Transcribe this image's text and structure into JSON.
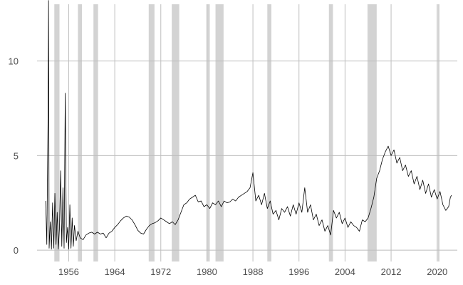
{
  "chart_data": {
    "type": "line",
    "title": "",
    "xlabel": "",
    "ylabel": "",
    "xlim": [
      1950.5,
      2023.5
    ],
    "ylim": [
      -0.6,
      13.0
    ],
    "x_ticks": [
      1956,
      1964,
      1972,
      1980,
      1988,
      1996,
      2004,
      2012,
      2020
    ],
    "x_tick_labels": [
      "1956",
      "1964",
      "1972",
      "1980",
      "1988",
      "1996",
      "2004",
      "2012",
      "2020"
    ],
    "y_ticks": [
      0,
      5,
      10
    ],
    "y_tick_labels": [
      "0",
      "5",
      "10"
    ],
    "grid": true,
    "legend": "none",
    "colors": {
      "line": "#000000",
      "shade": "#d3d3d3",
      "grid": "#bebebe",
      "background": "#ffffff"
    },
    "recession_periods": [
      [
        1953.5,
        1954.4
      ],
      [
        1957.6,
        1958.3
      ],
      [
        1960.3,
        1961.1
      ],
      [
        1969.9,
        1970.9
      ],
      [
        1973.9,
        1975.2
      ],
      [
        1980.0,
        1980.5
      ],
      [
        1981.5,
        1982.9
      ],
      [
        1990.5,
        1991.2
      ],
      [
        2001.2,
        2001.9
      ],
      [
        2007.9,
        2009.5
      ],
      [
        2020.1,
        2020.4
      ]
    ],
    "series": [
      {
        "values": [
          [
            1952.0,
            2.6
          ],
          [
            1952.2,
            0.3
          ],
          [
            1952.4,
            6.7
          ],
          [
            1952.5,
            13.2
          ],
          [
            1952.6,
            0.1
          ],
          [
            1952.8,
            1.5
          ],
          [
            1953.0,
            0.05
          ],
          [
            1953.2,
            2.5
          ],
          [
            1953.4,
            0.1
          ],
          [
            1953.6,
            3.0
          ],
          [
            1953.8,
            0.3
          ],
          [
            1954.0,
            2.0
          ],
          [
            1954.2,
            0.05
          ],
          [
            1954.4,
            1.2
          ],
          [
            1954.6,
            4.2
          ],
          [
            1954.8,
            0.2
          ],
          [
            1955.0,
            3.3
          ],
          [
            1955.2,
            0.1
          ],
          [
            1955.4,
            8.3
          ],
          [
            1955.6,
            0.4
          ],
          [
            1955.8,
            1.2
          ],
          [
            1956.0,
            0.05
          ],
          [
            1956.2,
            2.4
          ],
          [
            1956.4,
            0.1
          ],
          [
            1956.6,
            1.7
          ],
          [
            1956.8,
            0.2
          ],
          [
            1957.0,
            1.3
          ],
          [
            1957.3,
            0.5
          ],
          [
            1957.6,
            1.0
          ],
          [
            1958.0,
            0.65
          ],
          [
            1958.5,
            0.55
          ],
          [
            1959.0,
            0.8
          ],
          [
            1959.5,
            0.9
          ],
          [
            1960.0,
            0.95
          ],
          [
            1960.5,
            0.85
          ],
          [
            1961.0,
            0.95
          ],
          [
            1961.5,
            0.85
          ],
          [
            1962.0,
            0.9
          ],
          [
            1962.5,
            0.65
          ],
          [
            1963.0,
            0.9
          ],
          [
            1963.5,
            1.0
          ],
          [
            1964.0,
            1.2
          ],
          [
            1964.5,
            1.35
          ],
          [
            1965.0,
            1.55
          ],
          [
            1965.5,
            1.7
          ],
          [
            1966.0,
            1.8
          ],
          [
            1966.5,
            1.75
          ],
          [
            1967.0,
            1.6
          ],
          [
            1967.5,
            1.35
          ],
          [
            1968.0,
            1.05
          ],
          [
            1968.5,
            0.9
          ],
          [
            1969.0,
            0.85
          ],
          [
            1969.5,
            1.1
          ],
          [
            1970.0,
            1.3
          ],
          [
            1970.5,
            1.4
          ],
          [
            1971.0,
            1.45
          ],
          [
            1971.5,
            1.55
          ],
          [
            1972.0,
            1.7
          ],
          [
            1972.5,
            1.6
          ],
          [
            1973.0,
            1.5
          ],
          [
            1973.5,
            1.4
          ],
          [
            1974.0,
            1.5
          ],
          [
            1974.5,
            1.35
          ],
          [
            1975.0,
            1.6
          ],
          [
            1975.5,
            2.0
          ],
          [
            1976.0,
            2.4
          ],
          [
            1976.5,
            2.5
          ],
          [
            1977.0,
            2.7
          ],
          [
            1977.5,
            2.8
          ],
          [
            1978.0,
            2.9
          ],
          [
            1978.5,
            2.55
          ],
          [
            1979.0,
            2.6
          ],
          [
            1979.5,
            2.3
          ],
          [
            1980.0,
            2.4
          ],
          [
            1980.5,
            2.2
          ],
          [
            1981.0,
            2.5
          ],
          [
            1981.5,
            2.4
          ],
          [
            1982.0,
            2.6
          ],
          [
            1982.5,
            2.3
          ],
          [
            1983.0,
            2.6
          ],
          [
            1983.5,
            2.5
          ],
          [
            1984.0,
            2.55
          ],
          [
            1984.5,
            2.7
          ],
          [
            1985.0,
            2.6
          ],
          [
            1985.5,
            2.8
          ],
          [
            1986.0,
            2.9
          ],
          [
            1986.5,
            3.0
          ],
          [
            1987.0,
            3.1
          ],
          [
            1987.5,
            3.3
          ],
          [
            1988.0,
            4.1
          ],
          [
            1988.5,
            2.6
          ],
          [
            1989.0,
            2.9
          ],
          [
            1989.5,
            2.4
          ],
          [
            1990.0,
            3.0
          ],
          [
            1990.5,
            2.2
          ],
          [
            1991.0,
            2.6
          ],
          [
            1991.5,
            1.9
          ],
          [
            1992.0,
            2.1
          ],
          [
            1992.5,
            1.6
          ],
          [
            1993.0,
            2.2
          ],
          [
            1993.5,
            2.0
          ],
          [
            1994.0,
            2.3
          ],
          [
            1994.5,
            1.8
          ],
          [
            1995.0,
            2.4
          ],
          [
            1995.5,
            1.9
          ],
          [
            1996.0,
            2.5
          ],
          [
            1996.5,
            2.0
          ],
          [
            1997.0,
            3.3
          ],
          [
            1997.5,
            2.0
          ],
          [
            1998.0,
            2.4
          ],
          [
            1998.5,
            1.6
          ],
          [
            1999.0,
            1.9
          ],
          [
            1999.5,
            1.3
          ],
          [
            2000.0,
            1.6
          ],
          [
            2000.5,
            1.0
          ],
          [
            2001.0,
            1.3
          ],
          [
            2001.5,
            0.8
          ],
          [
            2002.0,
            2.1
          ],
          [
            2002.5,
            1.7
          ],
          [
            2003.0,
            2.0
          ],
          [
            2003.5,
            1.4
          ],
          [
            2004.0,
            1.7
          ],
          [
            2004.5,
            1.2
          ],
          [
            2005.0,
            1.5
          ],
          [
            2005.5,
            1.3
          ],
          [
            2006.0,
            1.2
          ],
          [
            2006.5,
            1.0
          ],
          [
            2007.0,
            1.6
          ],
          [
            2007.5,
            1.5
          ],
          [
            2008.0,
            1.7
          ],
          [
            2008.5,
            2.2
          ],
          [
            2009.0,
            2.8
          ],
          [
            2009.5,
            3.8
          ],
          [
            2010.0,
            4.2
          ],
          [
            2010.5,
            4.8
          ],
          [
            2011.0,
            5.2
          ],
          [
            2011.5,
            5.5
          ],
          [
            2012.0,
            5.0
          ],
          [
            2012.5,
            5.3
          ],
          [
            2013.0,
            4.6
          ],
          [
            2013.5,
            4.9
          ],
          [
            2014.0,
            4.2
          ],
          [
            2014.5,
            4.5
          ],
          [
            2015.0,
            3.9
          ],
          [
            2015.5,
            4.2
          ],
          [
            2016.0,
            3.5
          ],
          [
            2016.5,
            3.9
          ],
          [
            2017.0,
            3.2
          ],
          [
            2017.5,
            3.7
          ],
          [
            2018.0,
            3.0
          ],
          [
            2018.5,
            3.5
          ],
          [
            2019.0,
            2.8
          ],
          [
            2019.5,
            3.2
          ],
          [
            2020.0,
            2.7
          ],
          [
            2020.5,
            3.1
          ],
          [
            2021.0,
            2.4
          ],
          [
            2021.5,
            2.1
          ],
          [
            2022.0,
            2.3
          ],
          [
            2022.3,
            2.8
          ],
          [
            2022.5,
            2.9
          ]
        ]
      }
    ]
  }
}
